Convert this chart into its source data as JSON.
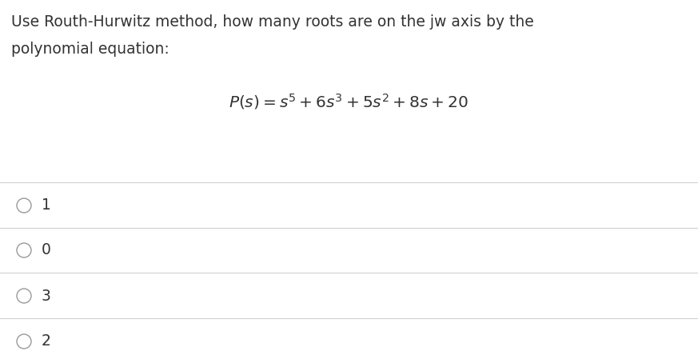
{
  "question_line1": "Use Routh-Hurwitz method, how many roots are on the jw axis by the",
  "question_line2": "polynomial equation:",
  "equation": "$P(s) = s^5 + 6s^3 + 5s^2 + 8s + 20$",
  "options": [
    "1",
    "0",
    "3",
    "2"
  ],
  "bg_color": "#ffffff",
  "text_color": "#333333",
  "question_fontsize": 13.5,
  "equation_fontsize": 14.5,
  "option_fontsize": 13.5,
  "divider_color": "#d0d0d0",
  "divider_linewidth": 0.8,
  "circle_edgecolor": "#999999",
  "circle_linewidth": 1.0
}
